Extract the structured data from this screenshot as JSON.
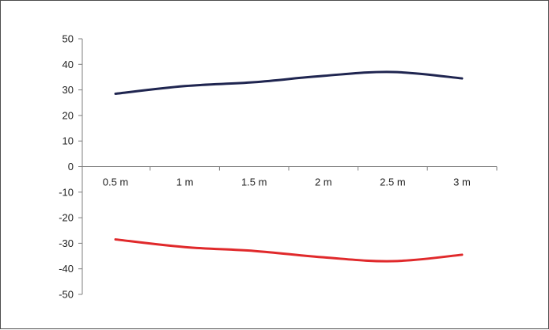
{
  "chart_data": {
    "type": "line",
    "title": "",
    "xlabel": "",
    "ylabel": "",
    "categories": [
      "0.5 m",
      "1 m",
      "1.5 m",
      "2 m",
      "2.5 m",
      "3 m"
    ],
    "ylim": [
      -50,
      50
    ],
    "yticks": [
      50,
      40,
      30,
      20,
      10,
      0,
      -10,
      -20,
      -30,
      -40,
      -50
    ],
    "grid": false,
    "legend": "none",
    "series": [
      {
        "color": "#1f2550",
        "values": [
          28.5,
          31.5,
          33,
          35.5,
          37,
          34.5
        ]
      },
      {
        "color": "#e0292b",
        "values": [
          -28.5,
          -31.5,
          -33,
          -35.5,
          -37,
          -34.5
        ]
      }
    ]
  }
}
